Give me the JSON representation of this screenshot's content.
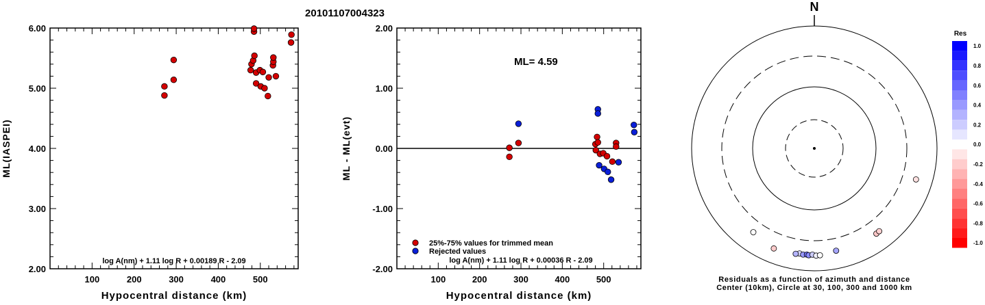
{
  "title": "20101107004323",
  "chart_data": [
    {
      "type": "scatter",
      "xlabel": "Hypocentral distance (km)",
      "ylabel": "ML(IASPEI)",
      "xlim": [
        0,
        590
      ],
      "ylim": [
        2.0,
        6.0
      ],
      "xticks": [
        "100",
        "200",
        "300",
        "400",
        "500"
      ],
      "yticks": [
        "2.00",
        "3.00",
        "4.00",
        "5.00",
        "6.00"
      ],
      "formula": "log A(nm) + 1.11 log R + 0.00189 R - 2.09",
      "series": [
        {
          "color": "#d40000",
          "points": [
            [
              272,
              4.88
            ],
            [
              272,
              5.03
            ],
            [
              294,
              5.14
            ],
            [
              294,
              5.47
            ],
            [
              477,
              5.3
            ],
            [
              479,
              5.4
            ],
            [
              483,
              5.46
            ],
            [
              485,
              5.94
            ],
            [
              485,
              5.99
            ],
            [
              486,
              5.54
            ],
            [
              490,
              5.26
            ],
            [
              490,
              5.08
            ],
            [
              499,
              5.3
            ],
            [
              501,
              5.03
            ],
            [
              506,
              5.27
            ],
            [
              510,
              5.0
            ],
            [
              518,
              4.87
            ],
            [
              520,
              5.18
            ],
            [
              530,
              5.38
            ],
            [
              531,
              5.44
            ],
            [
              531,
              5.51
            ],
            [
              537,
              5.2
            ],
            [
              573,
              5.76
            ],
            [
              574,
              5.89
            ]
          ]
        }
      ]
    },
    {
      "type": "scatter",
      "xlabel": "Hypocentral distance (km)",
      "ylabel": "ML - ML(evt)",
      "xlim": [
        0,
        590
      ],
      "ylim": [
        -2.0,
        2.0
      ],
      "xticks": [
        "100",
        "200",
        "300",
        "400",
        "500"
      ],
      "yticks": [
        "-2.00",
        "-1.00",
        "0.00",
        "1.00",
        "2.00"
      ],
      "annotation": "ML= 4.59",
      "formula": "log A(nm) + 1.11 log R + 0.00036 R - 2.09",
      "legend": [
        "25%-75% values for trimmed mean",
        "Rejected values"
      ],
      "series": [
        {
          "name": "25%-75% values for trimmed mean",
          "color": "#d40000",
          "points": [
            [
              272,
              0.01
            ],
            [
              272,
              -0.14
            ],
            [
              294,
              0.09
            ],
            [
              480,
              0.07
            ],
            [
              481,
              -0.03
            ],
            [
              484,
              0.19
            ],
            [
              486,
              0.1
            ],
            [
              491,
              -0.09
            ],
            [
              499,
              -0.08
            ],
            [
              508,
              -0.13
            ],
            [
              521,
              -0.22
            ],
            [
              530,
              0.09
            ],
            [
              530,
              0.03
            ]
          ]
        },
        {
          "name": "Rejected values",
          "color": "#0a1fd8",
          "points": [
            [
              294,
              0.41
            ],
            [
              486,
              0.65
            ],
            [
              486,
              0.58
            ],
            [
              489,
              -0.28
            ],
            [
              501,
              -0.34
            ],
            [
              510,
              -0.39
            ],
            [
              518,
              -0.52
            ],
            [
              536,
              -0.23
            ],
            [
              573,
              0.39
            ],
            [
              574,
              0.27
            ]
          ]
        }
      ]
    }
  ],
  "polar": {
    "north_label": "N",
    "caption_line1": "Residuals as a function of azimuth and distance",
    "caption_line2": "Center (10km), Circle at 30, 100, 300 and 1000 km",
    "points": [
      {
        "azimuth": 107,
        "distance_km": 520,
        "residual": -0.12
      },
      {
        "azimuth": 216,
        "distance_km": 470,
        "residual": 0.0
      },
      {
        "azimuth": 202,
        "distance_km": 560,
        "residual": -0.2
      },
      {
        "azimuth": 144,
        "distance_km": 505,
        "residual": -0.22
      },
      {
        "azimuth": 142,
        "distance_km": 500,
        "residual": -0.18
      },
      {
        "azimuth": 168,
        "distance_km": 490,
        "residual": 0.35
      },
      {
        "azimuth": 188,
        "distance_km": 520,
        "residual": 0.15
      },
      {
        "azimuth": 190,
        "distance_km": 540,
        "residual": 0.3
      },
      {
        "azimuth": 186,
        "distance_km": 535,
        "residual": 0.4
      },
      {
        "azimuth": 184,
        "distance_km": 528,
        "residual": 0.55
      },
      {
        "azimuth": 183,
        "distance_km": 540,
        "residual": 0.45
      },
      {
        "azimuth": 181,
        "distance_km": 524,
        "residual": 0.2
      },
      {
        "azimuth": 179,
        "distance_km": 545,
        "residual": 0.05
      },
      {
        "azimuth": 177,
        "distance_km": 540,
        "residual": 0.0
      }
    ]
  },
  "colorbar": {
    "title": "Res",
    "levels": [
      1.0,
      0.9,
      0.8,
      0.7,
      0.6,
      0.5,
      0.4,
      0.3,
      0.2,
      0.1,
      0.0,
      -0.1,
      -0.2,
      -0.3,
      -0.4,
      -0.5,
      -0.6,
      -0.7,
      -0.8,
      -0.9,
      -1.0
    ],
    "labels": [
      "1.0",
      "0.8",
      "0.6",
      "0.4",
      "0.2",
      "0.0",
      "-0.2",
      "-0.4",
      "-0.6",
      "-0.8",
      "-1.0"
    ]
  }
}
